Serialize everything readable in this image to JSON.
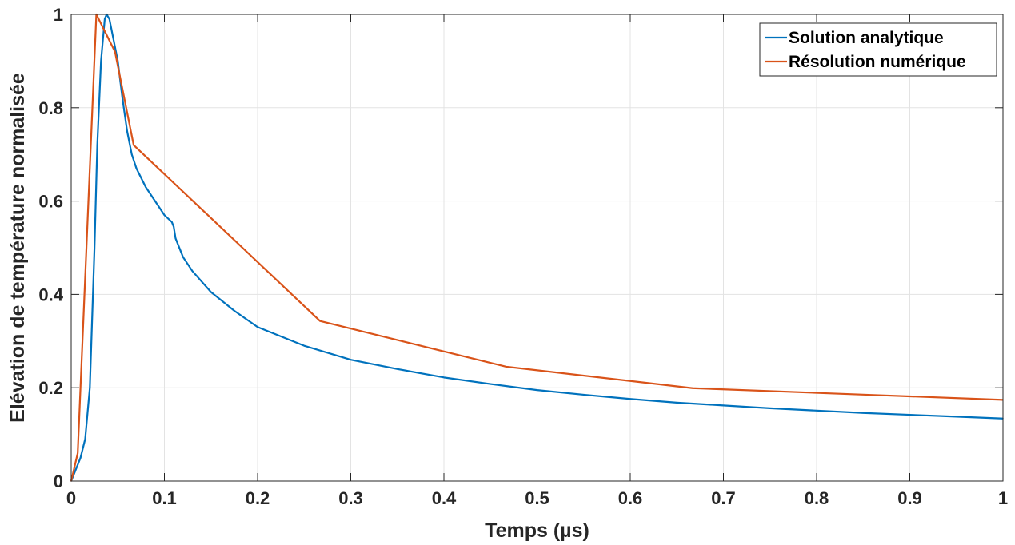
{
  "chart_data": {
    "type": "line",
    "xlabel": "Temps (µs)",
    "ylabel": "Elévation de température normalisée",
    "xlim": [
      0,
      1
    ],
    "ylim": [
      0,
      1
    ],
    "grid": true,
    "legend_position": "top-right",
    "x_ticks": [
      0,
      0.1,
      0.2,
      0.3,
      0.4,
      0.5,
      0.6,
      0.7,
      0.8,
      0.9,
      1
    ],
    "x_tick_labels": [
      "0",
      "0.1",
      "0.2",
      "0.3",
      "0.4",
      "0.5",
      "0.6",
      "0.7",
      "0.8",
      "0.9",
      "1"
    ],
    "y_ticks": [
      0,
      0.2,
      0.4,
      0.6,
      0.8,
      1
    ],
    "y_tick_labels": [
      "0",
      "0.2",
      "0.4",
      "0.6",
      "0.8",
      "1"
    ],
    "series": [
      {
        "name": "Solution analytique",
        "color": "#0072BD",
        "points": [
          [
            0,
            0
          ],
          [
            0.01,
            0.05
          ],
          [
            0.015,
            0.09
          ],
          [
            0.02,
            0.2
          ],
          [
            0.025,
            0.5
          ],
          [
            0.028,
            0.72
          ],
          [
            0.032,
            0.9
          ],
          [
            0.036,
            0.99
          ],
          [
            0.038,
            1.0
          ],
          [
            0.041,
            0.99
          ],
          [
            0.045,
            0.95
          ],
          [
            0.05,
            0.9
          ],
          [
            0.055,
            0.82
          ],
          [
            0.06,
            0.75
          ],
          [
            0.065,
            0.7
          ],
          [
            0.07,
            0.67
          ],
          [
            0.08,
            0.63
          ],
          [
            0.09,
            0.6
          ],
          [
            0.1,
            0.57
          ],
          [
            0.108,
            0.555
          ],
          [
            0.11,
            0.545
          ],
          [
            0.112,
            0.52
          ],
          [
            0.12,
            0.48
          ],
          [
            0.13,
            0.45
          ],
          [
            0.15,
            0.405
          ],
          [
            0.175,
            0.365
          ],
          [
            0.2,
            0.33
          ],
          [
            0.25,
            0.29
          ],
          [
            0.3,
            0.26
          ],
          [
            0.35,
            0.24
          ],
          [
            0.4,
            0.222
          ],
          [
            0.45,
            0.208
          ],
          [
            0.5,
            0.195
          ],
          [
            0.55,
            0.185
          ],
          [
            0.6,
            0.176
          ],
          [
            0.65,
            0.168
          ],
          [
            0.7,
            0.162
          ],
          [
            0.75,
            0.156
          ],
          [
            0.8,
            0.151
          ],
          [
            0.85,
            0.146
          ],
          [
            0.9,
            0.142
          ],
          [
            0.95,
            0.138
          ],
          [
            1.0,
            0.134
          ]
        ]
      },
      {
        "name": "Résolution numérique",
        "color": "#D95319",
        "points": [
          [
            0,
            0
          ],
          [
            0.007,
            0.06
          ],
          [
            0.027,
            1.0
          ],
          [
            0.047,
            0.92
          ],
          [
            0.067,
            0.72
          ],
          [
            0.267,
            0.343
          ],
          [
            0.467,
            0.245
          ],
          [
            0.667,
            0.199
          ],
          [
            0.867,
            0.184
          ],
          [
            1.0,
            0.174
          ]
        ]
      }
    ]
  }
}
